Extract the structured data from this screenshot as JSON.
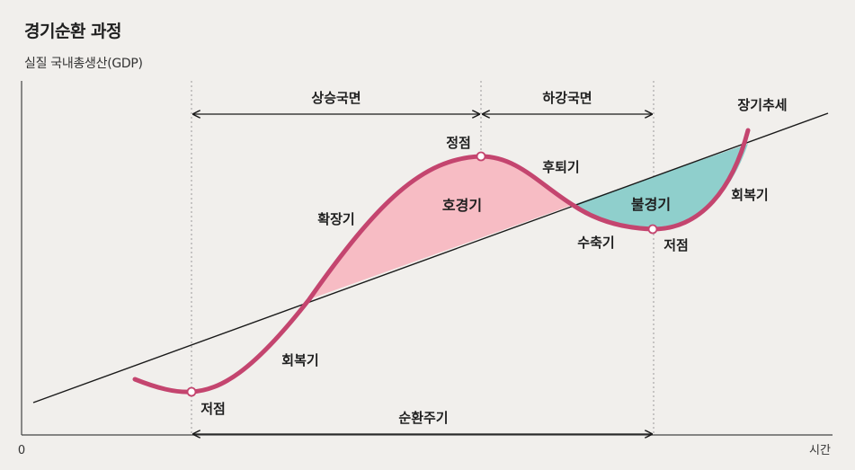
{
  "title": "경기순환 과정",
  "y_axis_label": "실질 국내총생산(GDP)",
  "x_axis_label": "시간",
  "origin_label": "0",
  "phases": {
    "upswing": "상승국면",
    "downswing": "하강국면",
    "cycle": "순환주기"
  },
  "labels": {
    "trend": "장기추세",
    "peak": "정점",
    "trough_left": "저점",
    "trough_right": "저점",
    "recovery_left": "회복기",
    "expansion": "확장기",
    "boom": "호경기",
    "recession": "후퇴기",
    "contraction": "수축기",
    "slump": "불경기",
    "recovery_right": "회복기"
  },
  "colors": {
    "curve": "#c4456f",
    "boom_fill": "#f7bcc4",
    "slump_fill": "#8fcfcc",
    "trend_line": "#1a1a1a",
    "background": "#f1efec"
  }
}
